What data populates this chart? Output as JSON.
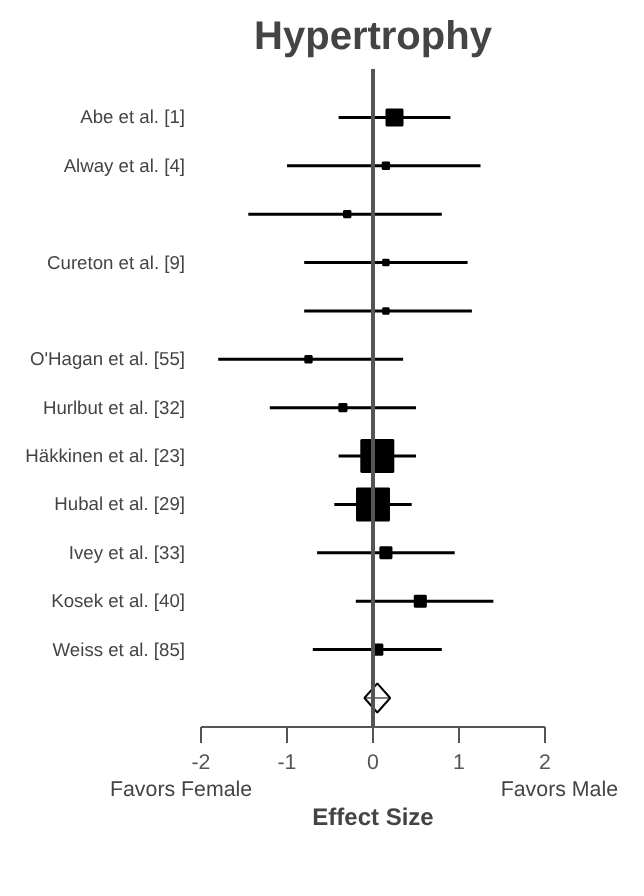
{
  "chart_data": {
    "type": "bubble",
    "orientation": "horizontal",
    "title": "Hypertrophy",
    "xlabel": "Effect Size",
    "categories": [
      "Abe et al. [1]",
      "Alway et al. [4]",
      null,
      "Cureton et al. [9]",
      null,
      "O'Hagan et al. [55]",
      "Hurlbut et al. [32]",
      "Häkkinen et al. [23]",
      "Hubal et al. [29]",
      "Ivey et al. [33]",
      "Kosek et al. [40]",
      "Weiss et al. [85]",
      null
    ],
    "series": [
      {
        "marker": "square",
        "color": "#000000",
        "values": [
          0.25,
          0.15,
          -0.3,
          0.15,
          0.15,
          -0.75,
          -0.35,
          0.05,
          0.0,
          0.15,
          0.55,
          0.05,
          null
        ],
        "sizes": [
          0.25,
          0.04,
          0.04,
          0.03,
          0.03,
          0.04,
          0.05,
          1,
          1,
          0.12,
          0.12,
          0.1,
          null
        ],
        "errors": [
          [
            -0.4,
            0.9
          ],
          [
            -1.0,
            1.25
          ],
          [
            -1.45,
            0.8
          ],
          [
            -0.8,
            1.1
          ],
          [
            -0.8,
            1.15
          ],
          [
            -1.8,
            0.35
          ],
          [
            -1.2,
            0.5
          ],
          [
            -0.4,
            0.5
          ],
          [
            -0.45,
            0.45
          ],
          [
            -0.65,
            0.95
          ],
          [
            -0.2,
            1.4
          ],
          [
            -0.7,
            0.8
          ],
          null
        ]
      },
      {
        "marker": "diamond",
        "color": "#000000",
        "values": [
          null,
          null,
          null,
          null,
          null,
          null,
          null,
          null,
          null,
          null,
          null,
          null,
          0.05
        ],
        "errors": [
          null,
          null,
          null,
          null,
          null,
          null,
          null,
          null,
          null,
          null,
          null,
          null,
          [
            -0.1,
            0.2
          ]
        ]
      }
    ],
    "xlim": [
      -2,
      2
    ],
    "xticks": [
      -2,
      -1,
      0,
      1,
      2
    ],
    "ref_lines": [
      {
        "axis": "x",
        "value": 0,
        "color": "#555555"
      }
    ],
    "annotations": [
      "Favors Female",
      "Favors Male"
    ],
    "grid": false
  }
}
